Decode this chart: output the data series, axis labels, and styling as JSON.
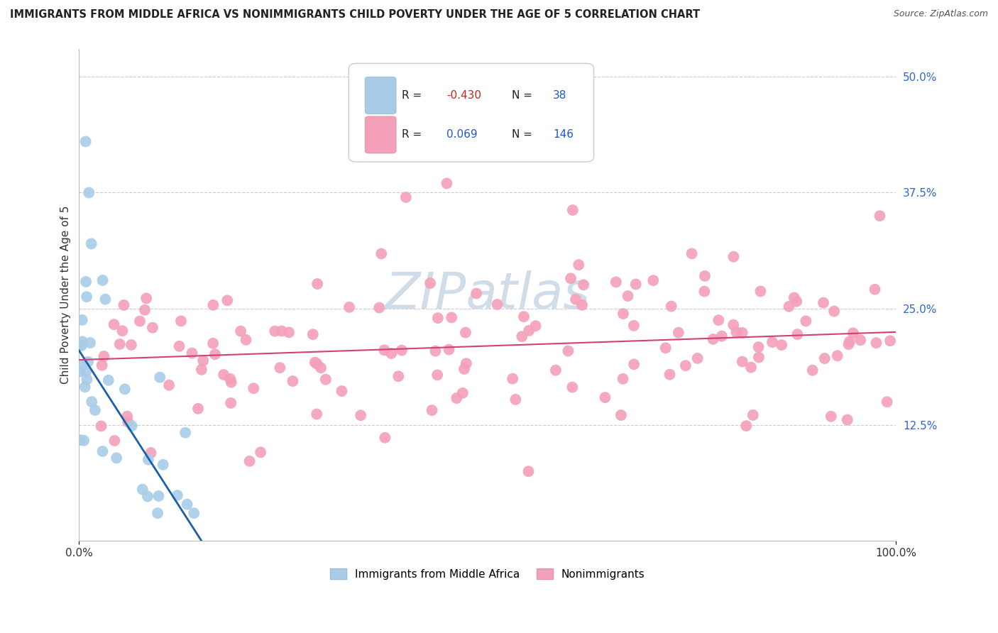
{
  "title": "IMMIGRANTS FROM MIDDLE AFRICA VS NONIMMIGRANTS CHILD POVERTY UNDER THE AGE OF 5 CORRELATION CHART",
  "source": "Source: ZipAtlas.com",
  "ylabel": "Child Poverty Under the Age of 5",
  "legend_label_1": "Immigrants from Middle Africa",
  "legend_label_2": "Nonimmigrants",
  "R1": -0.43,
  "N1": 38,
  "R2": 0.069,
  "N2": 146,
  "color_blue": "#a8cce8",
  "color_blue_line": "#1a5fa8",
  "color_pink": "#f4a0b8",
  "color_pink_line": "#d44070",
  "bg_color": "#ffffff",
  "grid_color": "#cccccc",
  "xlim": [
    0,
    100
  ],
  "ylim": [
    0,
    53
  ],
  "yticks": [
    0,
    12.5,
    25.0,
    37.5,
    50.0
  ],
  "ytick_labels": [
    "",
    "12.5%",
    "25.0%",
    "37.5%",
    "50.0%"
  ],
  "blue_trend_x": [
    0,
    15
  ],
  "blue_trend_y": [
    20.5,
    0.0
  ],
  "pink_trend_x": [
    0,
    100
  ],
  "pink_trend_y": [
    19.5,
    22.5
  ],
  "watermark": "ZIPatlas",
  "watermark_color": "#d0dce8"
}
